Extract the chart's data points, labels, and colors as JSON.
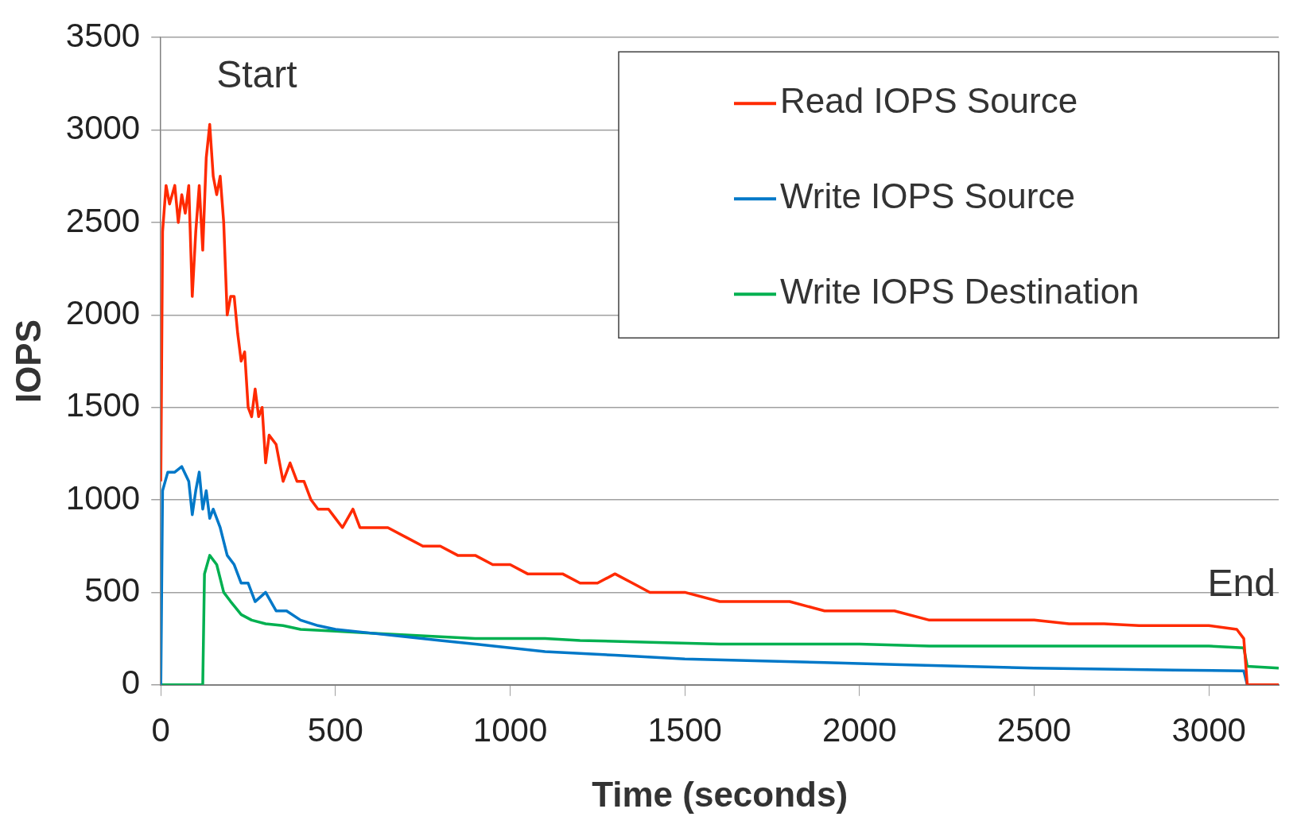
{
  "chart_data": {
    "type": "line",
    "xlabel": "Time (seconds)",
    "ylabel": "IOPS",
    "xlim": [
      0,
      3200
    ],
    "xticks": [
      0,
      500,
      1000,
      1500,
      2000,
      2500,
      3000
    ],
    "ylim": [
      0,
      3500
    ],
    "yticks": [
      0,
      500,
      1000,
      1500,
      2000,
      2500,
      3000,
      3500
    ],
    "grid": "y",
    "legend": "top right",
    "marker": "none",
    "line_style": "solid",
    "annotations": [
      "Start",
      "End"
    ],
    "series": [
      {
        "name": "Read IOPS Source",
        "color": "#ff2a00",
        "x": [
          0,
          5,
          15,
          25,
          40,
          50,
          60,
          70,
          80,
          90,
          100,
          110,
          120,
          130,
          140,
          150,
          160,
          170,
          180,
          190,
          200,
          210,
          220,
          230,
          240,
          250,
          260,
          270,
          280,
          290,
          300,
          310,
          330,
          350,
          370,
          390,
          410,
          430,
          450,
          480,
          500,
          520,
          550,
          570,
          600,
          650,
          700,
          750,
          800,
          850,
          900,
          950,
          1000,
          1050,
          1100,
          1150,
          1200,
          1250,
          1300,
          1350,
          1400,
          1500,
          1600,
          1700,
          1800,
          1900,
          2000,
          2100,
          2200,
          2300,
          2400,
          2500,
          2600,
          2700,
          2800,
          2900,
          3000,
          3080,
          3100,
          3110,
          3200
        ],
        "values": [
          1100,
          2450,
          2700,
          2600,
          2700,
          2500,
          2650,
          2550,
          2700,
          2100,
          2450,
          2700,
          2350,
          2850,
          3030,
          2750,
          2650,
          2750,
          2500,
          2000,
          2100,
          2100,
          1900,
          1750,
          1800,
          1500,
          1450,
          1600,
          1450,
          1500,
          1200,
          1350,
          1300,
          1100,
          1200,
          1100,
          1100,
          1000,
          950,
          950,
          900,
          850,
          950,
          850,
          850,
          850,
          800,
          750,
          750,
          700,
          700,
          650,
          650,
          600,
          600,
          600,
          550,
          550,
          600,
          550,
          500,
          500,
          450,
          450,
          450,
          400,
          400,
          400,
          350,
          350,
          350,
          350,
          330,
          330,
          320,
          320,
          320,
          300,
          250,
          0,
          0
        ]
      },
      {
        "name": "Write IOPS Source",
        "color": "#0078c8",
        "x": [
          0,
          5,
          20,
          40,
          60,
          80,
          90,
          100,
          110,
          120,
          130,
          140,
          150,
          170,
          190,
          210,
          230,
          250,
          270,
          300,
          330,
          360,
          400,
          450,
          500,
          600,
          700,
          800,
          900,
          1000,
          1100,
          1200,
          1300,
          1500,
          1700,
          1900,
          2100,
          2300,
          2500,
          2700,
          2900,
          3100,
          3110,
          3200
        ],
        "values": [
          0,
          1050,
          1150,
          1150,
          1180,
          1100,
          920,
          1050,
          1150,
          950,
          1050,
          900,
          950,
          850,
          700,
          650,
          550,
          550,
          450,
          500,
          400,
          400,
          350,
          320,
          300,
          280,
          260,
          240,
          220,
          200,
          180,
          170,
          160,
          140,
          130,
          120,
          110,
          100,
          90,
          85,
          80,
          75,
          0,
          0
        ]
      },
      {
        "name": "Write IOPS Destination",
        "color": "#00b050",
        "x": [
          0,
          100,
          120,
          125,
          140,
          160,
          180,
          200,
          230,
          260,
          300,
          350,
          400,
          500,
          600,
          700,
          800,
          900,
          1000,
          1100,
          1200,
          1400,
          1600,
          1800,
          2000,
          2200,
          2400,
          2600,
          2800,
          3000,
          3100,
          3110,
          3200
        ],
        "values": [
          0,
          0,
          0,
          600,
          700,
          650,
          500,
          450,
          380,
          350,
          330,
          320,
          300,
          290,
          280,
          270,
          260,
          250,
          250,
          250,
          240,
          230,
          220,
          220,
          220,
          210,
          210,
          210,
          210,
          210,
          200,
          100,
          90
        ]
      }
    ]
  }
}
